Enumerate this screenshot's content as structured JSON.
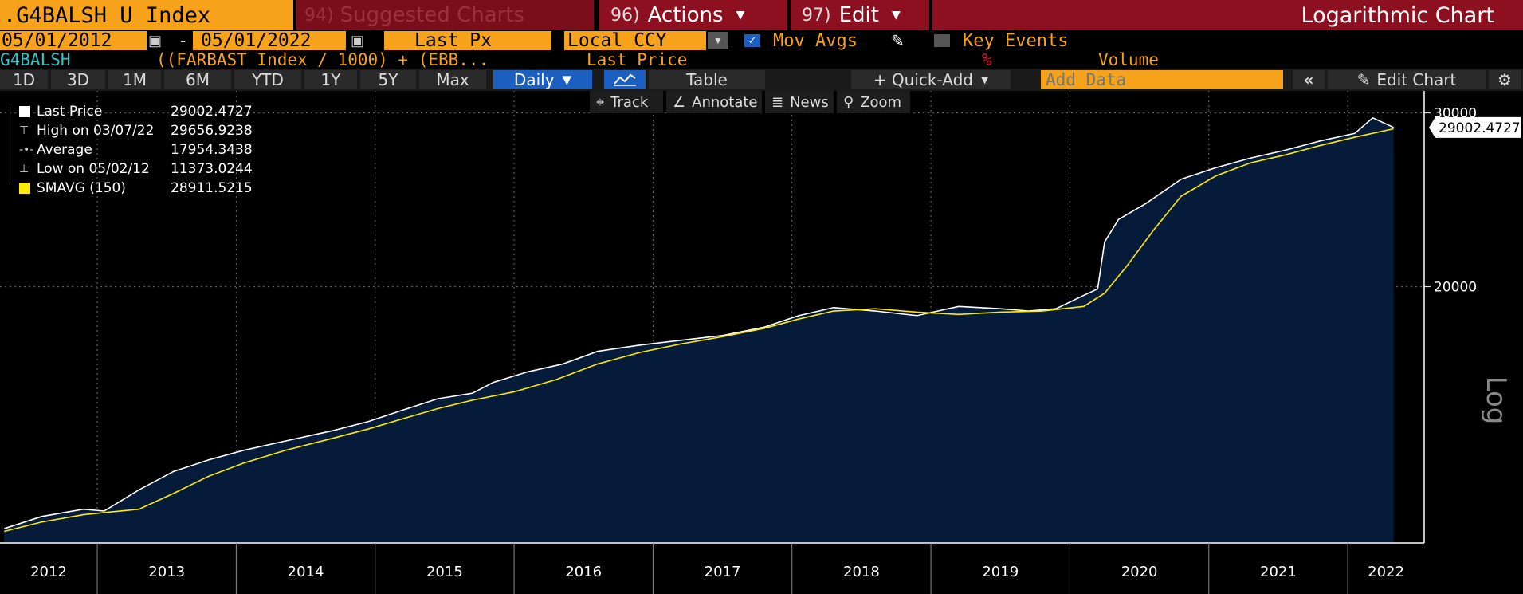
{
  "toolbar": {
    "ticker": ".G4BALSH U Index",
    "suggested_num": "94)",
    "suggested_label": "Suggested Charts",
    "actions_num": "96)",
    "actions_label": "Actions",
    "edit_num": "97)",
    "edit_label": "Edit",
    "chart_title": "Logarithmic Chart"
  },
  "controls": {
    "start_date": "05/01/2012",
    "end_date": "05/01/2022",
    "dash": "-",
    "field": "Last Px",
    "currency": "Local CCY",
    "mov_avgs_label": "Mov Avgs",
    "mov_avgs_checked": true,
    "key_events_label": "Key Events",
    "key_events_checked": false
  },
  "formula_row": {
    "short_name": "G4BALSH",
    "formula": "((FARBAST Index / 1000) + (EBB...",
    "field": "Last Price",
    "percent": "%",
    "volume": "Volume"
  },
  "periods": [
    "1D",
    "3D",
    "1M",
    "6M",
    "YTD",
    "1Y",
    "5Y",
    "Max"
  ],
  "frequency": "Daily",
  "table_label": "Table",
  "quick_add_label": "+ Quick-Add",
  "add_data_placeholder": "Add Data",
  "edit_chart_label": "Edit Chart",
  "chart_tools": [
    "Track",
    "Annotate",
    "News",
    "Zoom"
  ],
  "legend": [
    {
      "name": "Last Price",
      "value": "29002.4727",
      "color": "#ffffff"
    },
    {
      "name": "High on 03/07/22",
      "value": "29656.9238",
      "color": "#ffffff"
    },
    {
      "name": "Average",
      "value": "17954.3438",
      "color": "#ffffff"
    },
    {
      "name": "Low on 05/02/12",
      "value": "11373.0244",
      "color": "#ffffff"
    },
    {
      "name": "SMAVG (150)",
      "value": "28911.5215",
      "color": "#ffec00"
    }
  ],
  "last_price_tag": "29002.4727",
  "axis_side_label": "Log",
  "colors": {
    "orange": "#f7a21b",
    "red": "#8c1020",
    "area_fill": "#051b39",
    "price_line": "#ffffff",
    "sma_line": "#ffec00",
    "selected_blue": "#1b5fc1"
  },
  "chart_data": {
    "type": "area",
    "title": "Logarithmic Chart",
    "y_scale": "log",
    "ylim": [
      11000,
      31000
    ],
    "y_ticks": [
      20000,
      30000
    ],
    "x_ticks": [
      "2012",
      "2013",
      "2014",
      "2015",
      "2016",
      "2017",
      "2018",
      "2019",
      "2020",
      "2021",
      "2022"
    ],
    "xlim": [
      2012.3,
      2022.55
    ],
    "grid": true,
    "series": [
      {
        "name": "Last Price",
        "x": [
          2012.33,
          2012.6,
          2012.9,
          2013.05,
          2013.3,
          2013.55,
          2013.8,
          2014.05,
          2014.35,
          2014.7,
          2014.95,
          2015.2,
          2015.45,
          2015.7,
          2015.85,
          2016.1,
          2016.35,
          2016.6,
          2016.9,
          2017.2,
          2017.5,
          2017.8,
          2018.05,
          2018.3,
          2018.6,
          2018.9,
          2019.2,
          2019.5,
          2019.7,
          2019.9,
          2020.1,
          2020.2,
          2020.25,
          2020.35,
          2020.55,
          2020.8,
          2021.05,
          2021.3,
          2021.55,
          2021.8,
          2022.05,
          2022.18,
          2022.33
        ],
        "y": [
          11373,
          11700,
          11900,
          11850,
          12450,
          13000,
          13350,
          13650,
          13950,
          14300,
          14600,
          15000,
          15400,
          15600,
          16000,
          16400,
          16700,
          17200,
          17450,
          17650,
          17850,
          18200,
          18700,
          19050,
          18900,
          18700,
          19100,
          19000,
          18900,
          19000,
          19600,
          19900,
          22200,
          23400,
          24300,
          25700,
          26400,
          27000,
          27500,
          28100,
          28600,
          29656,
          29002
        ]
      },
      {
        "name": "SMAVG (150)",
        "x": [
          2012.33,
          2012.6,
          2012.9,
          2013.3,
          2013.55,
          2013.8,
          2014.05,
          2014.35,
          2014.7,
          2014.95,
          2015.2,
          2015.45,
          2015.7,
          2016.0,
          2016.3,
          2016.6,
          2016.9,
          2017.2,
          2017.5,
          2017.8,
          2018.05,
          2018.3,
          2018.6,
          2018.9,
          2019.2,
          2019.5,
          2019.8,
          2020.1,
          2020.25,
          2020.4,
          2020.6,
          2020.8,
          2021.05,
          2021.3,
          2021.55,
          2021.8,
          2022.05,
          2022.33
        ],
        "y": [
          11300,
          11550,
          11750,
          11900,
          12350,
          12850,
          13250,
          13650,
          14050,
          14350,
          14700,
          15050,
          15350,
          15650,
          16100,
          16700,
          17150,
          17500,
          17800,
          18150,
          18550,
          18900,
          19000,
          18850,
          18750,
          18850,
          18900,
          19100,
          19700,
          20900,
          22800,
          24700,
          25900,
          26700,
          27200,
          27800,
          28350,
          28911
        ]
      }
    ]
  }
}
